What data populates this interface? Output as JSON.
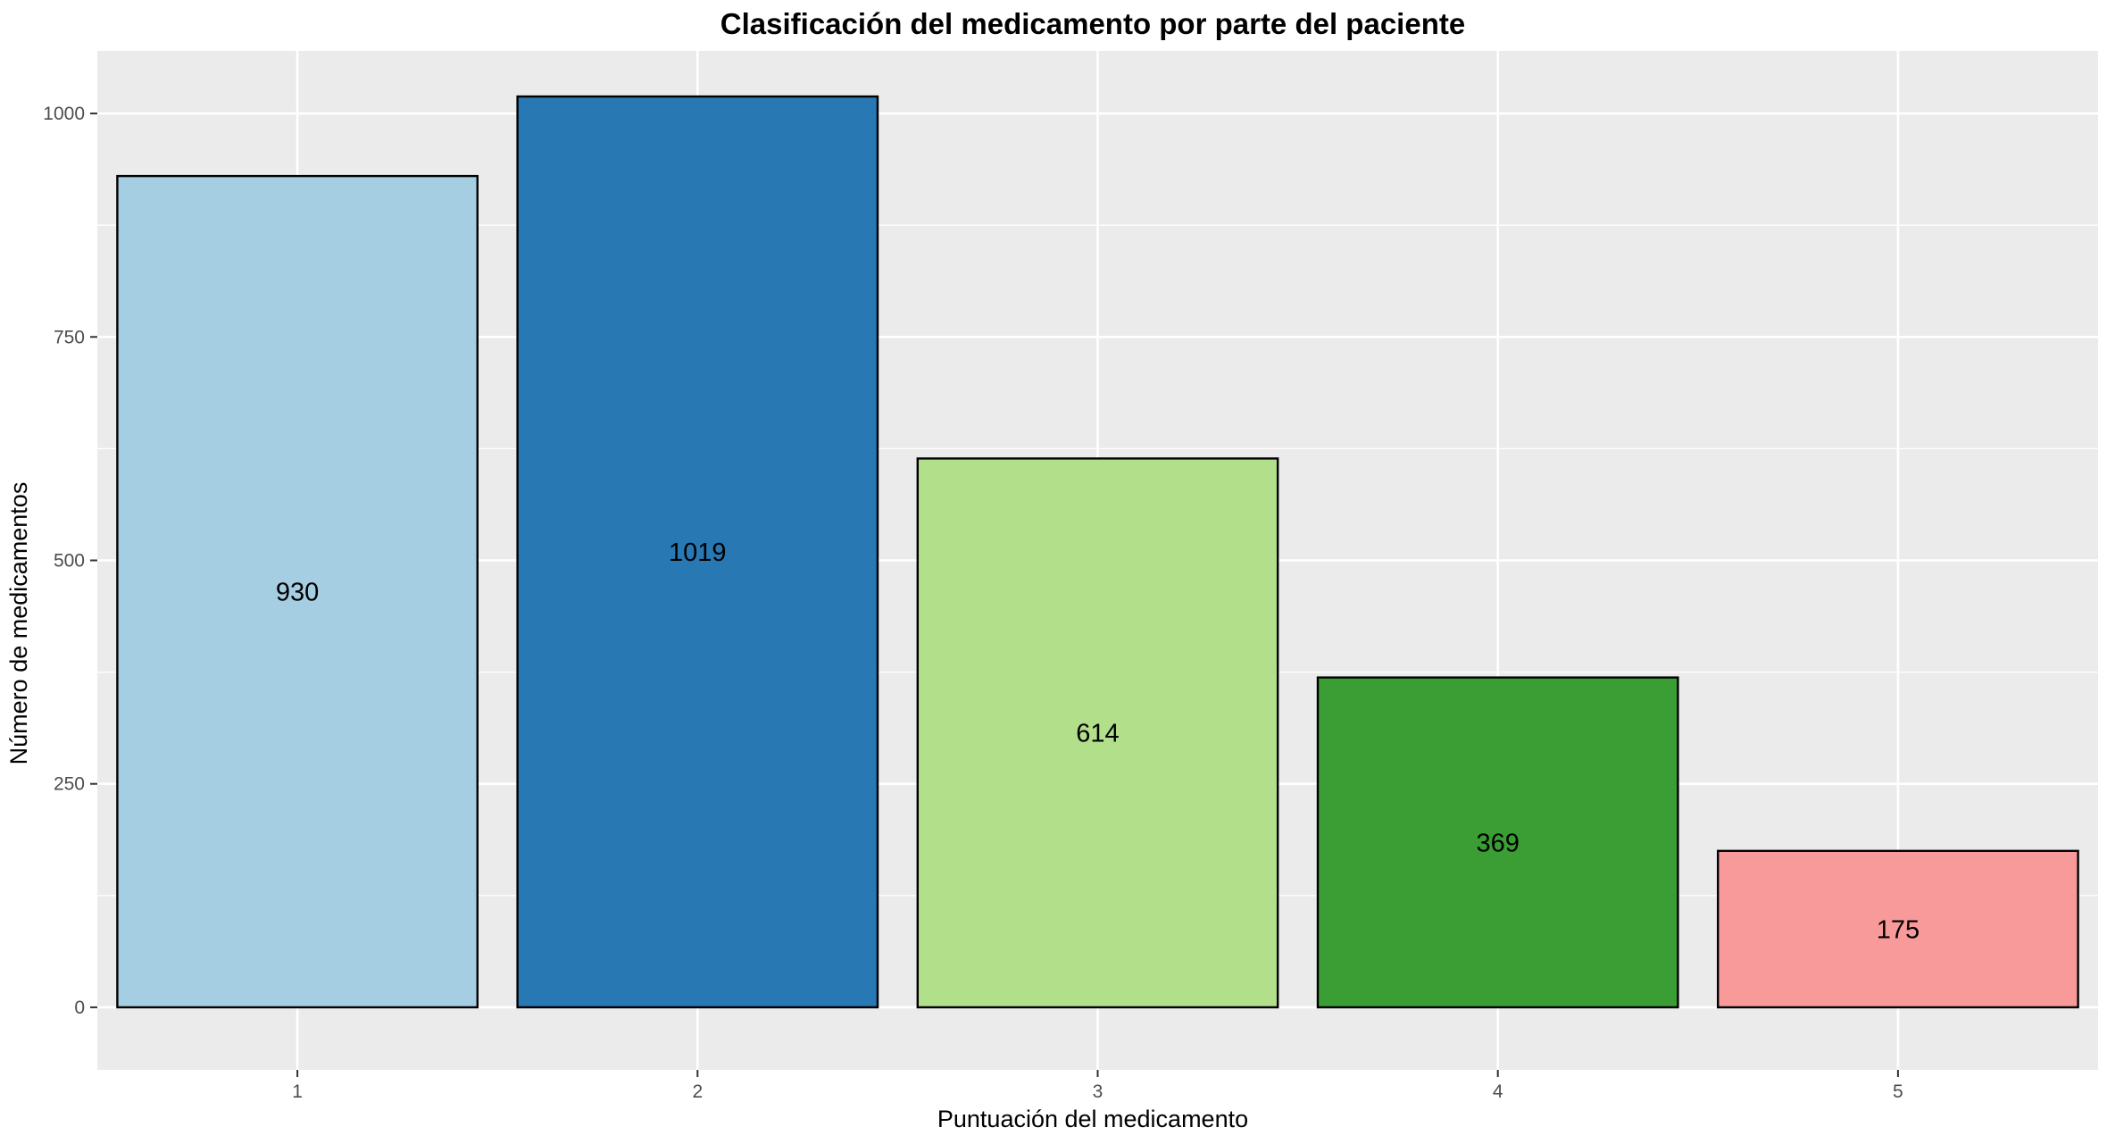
{
  "chart_data": {
    "type": "bar",
    "title": "Clasificación del medicamento por parte del paciente",
    "xlabel": "Puntuación del medicamento",
    "ylabel": "Número de medicamentos",
    "categories": [
      "1",
      "2",
      "3",
      "4",
      "5"
    ],
    "values": [
      930,
      1019,
      614,
      369,
      175
    ],
    "data_labels": [
      "930",
      "1019",
      "614",
      "369",
      "175"
    ],
    "colors": [
      "#a6cee3",
      "#2878b3",
      "#b2df8a",
      "#3a9e35",
      "#f89a99"
    ],
    "ylim": [
      -70,
      1070
    ],
    "yticks": [
      0,
      250,
      500,
      750,
      1000
    ],
    "ytick_labels": [
      "0",
      "250",
      "500",
      "750",
      "1000"
    ],
    "grid": true,
    "legend": "none",
    "panel_background": "#ebebeb",
    "grid_color": "#ffffff",
    "bar_outline": "#000000"
  }
}
